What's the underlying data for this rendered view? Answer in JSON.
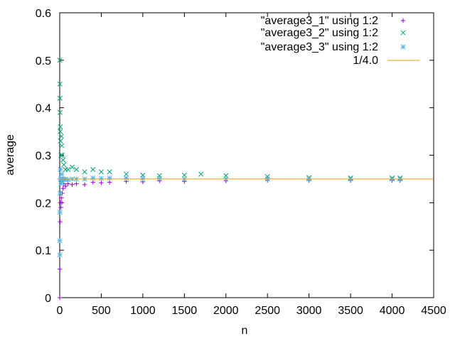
{
  "chart_data": {
    "type": "scatter",
    "xlabel": "n",
    "ylabel": "average",
    "xlim": [
      0,
      4500
    ],
    "ylim": [
      0,
      0.6
    ],
    "xticks": [
      0,
      500,
      1000,
      1500,
      2000,
      2500,
      3000,
      3500,
      4000,
      4500
    ],
    "yticks": [
      0,
      0.1,
      0.2,
      0.3,
      0.4,
      0.5,
      0.6
    ],
    "ytick_labels": [
      "0",
      "0.1",
      "0.2",
      "0.3",
      "0.4",
      "0.5",
      "0.6"
    ],
    "legend_position": "top-right",
    "series": [
      {
        "name": "\"average3_1\" using 1:2",
        "marker": "+",
        "color": "#9400d3",
        "x": [
          1,
          2,
          3,
          5,
          8,
          10,
          15,
          20,
          25,
          30,
          40,
          50,
          70,
          100,
          150,
          200,
          300,
          400,
          500,
          600,
          800,
          1000,
          1200,
          1500,
          2000,
          2500,
          3000,
          3500,
          4000,
          4096
        ],
        "y": [
          0,
          0.06,
          0.25,
          0.16,
          0.2,
          0.22,
          0.19,
          0.21,
          0.2,
          0.22,
          0.23,
          0.24,
          0.235,
          0.24,
          0.238,
          0.24,
          0.238,
          0.243,
          0.242,
          0.243,
          0.245,
          0.244,
          0.246,
          0.245,
          0.246,
          0.247,
          0.247,
          0.247,
          0.247,
          0.247
        ]
      },
      {
        "name": "\"average3_2\" using 1:2",
        "marker": "x",
        "color": "#009e73",
        "x": [
          1,
          2,
          3,
          4,
          6,
          8,
          10,
          15,
          20,
          25,
          30,
          40,
          50,
          70,
          100,
          150,
          200,
          300,
          400,
          500,
          600,
          800,
          1000,
          1200,
          1500,
          1700,
          2000,
          2500,
          3000,
          3500,
          4000,
          4096
        ],
        "y": [
          0.5,
          0.45,
          0.42,
          0.39,
          0.35,
          0.36,
          0.33,
          0.3,
          0.34,
          0.32,
          0.3,
          0.29,
          0.28,
          0.27,
          0.27,
          0.275,
          0.27,
          0.265,
          0.27,
          0.265,
          0.265,
          0.26,
          0.258,
          0.257,
          0.258,
          0.26,
          0.257,
          0.255,
          0.253,
          0.252,
          0.252,
          0.252
        ]
      },
      {
        "name": "\"average3_3\" using 1:2",
        "marker": "*",
        "color": "#56b4e9",
        "x": [
          1,
          2,
          3,
          5,
          8,
          10,
          15,
          20,
          25,
          30,
          40,
          50,
          70,
          100,
          150,
          200,
          300,
          400,
          500,
          600,
          800,
          1000,
          1200,
          1500,
          2000,
          2500,
          3000,
          3500,
          4000,
          4096
        ],
        "y": [
          0.12,
          0.09,
          0.18,
          0.22,
          0.27,
          0.25,
          0.24,
          0.25,
          0.26,
          0.245,
          0.25,
          0.248,
          0.25,
          0.248,
          0.25,
          0.25,
          0.25,
          0.252,
          0.251,
          0.252,
          0.252,
          0.251,
          0.251,
          0.25,
          0.25,
          0.25,
          0.25,
          0.25,
          0.25,
          0.25
        ]
      },
      {
        "name": "1/4.0",
        "style": "line",
        "color": "#e69f00",
        "x": [
          0,
          4500
        ],
        "y": [
          0.25,
          0.25
        ]
      }
    ]
  }
}
